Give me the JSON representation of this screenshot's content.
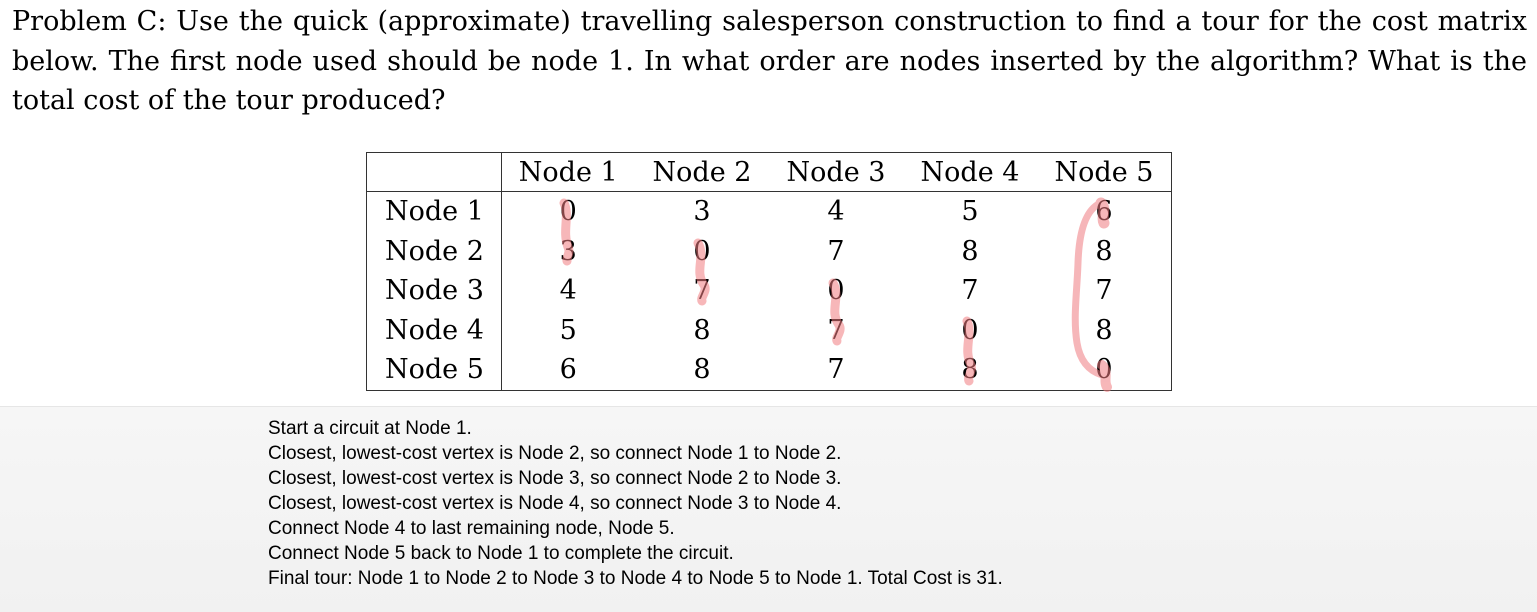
{
  "problem": {
    "text": "Problem C: Use the quick (approximate) travelling salesperson construction to find a tour for the cost matrix below. The first node used should be node 1. In what order are nodes inserted by the algorithm? What is the total cost of the tour produced?"
  },
  "matrix": {
    "columns": [
      "Node 1",
      "Node 2",
      "Node 3",
      "Node 4",
      "Node 5"
    ],
    "rows": [
      {
        "label": "Node 1",
        "values": [
          "0",
          "3",
          "4",
          "5",
          "6"
        ]
      },
      {
        "label": "Node 2",
        "values": [
          "3",
          "0",
          "7",
          "8",
          "8"
        ]
      },
      {
        "label": "Node 3",
        "values": [
          "4",
          "7",
          "0",
          "7",
          "7"
        ]
      },
      {
        "label": "Node 4",
        "values": [
          "5",
          "8",
          "7",
          "0",
          "8"
        ]
      },
      {
        "label": "Node 5",
        "values": [
          "6",
          "8",
          "7",
          "8",
          "0"
        ]
      }
    ],
    "highlight_color": "#f07b80"
  },
  "solution": {
    "lines": [
      "Start a circuit at Node 1.",
      "Closest, lowest-cost vertex is Node 2, so connect Node 1 to Node 2.",
      "Closest, lowest-cost vertex is Node 3, so connect Node 2 to Node 3.",
      "Closest, lowest-cost vertex is Node 4, so connect Node 3 to Node 4.",
      "Connect Node 4 to last remaining node, Node 5.",
      "Connect Node 5 back to Node 1 to complete the circuit.",
      "Final tour: Node 1 to Node 2 to Node 3 to Node 4 to Node 5 to Node 1. Total Cost is 31."
    ]
  }
}
